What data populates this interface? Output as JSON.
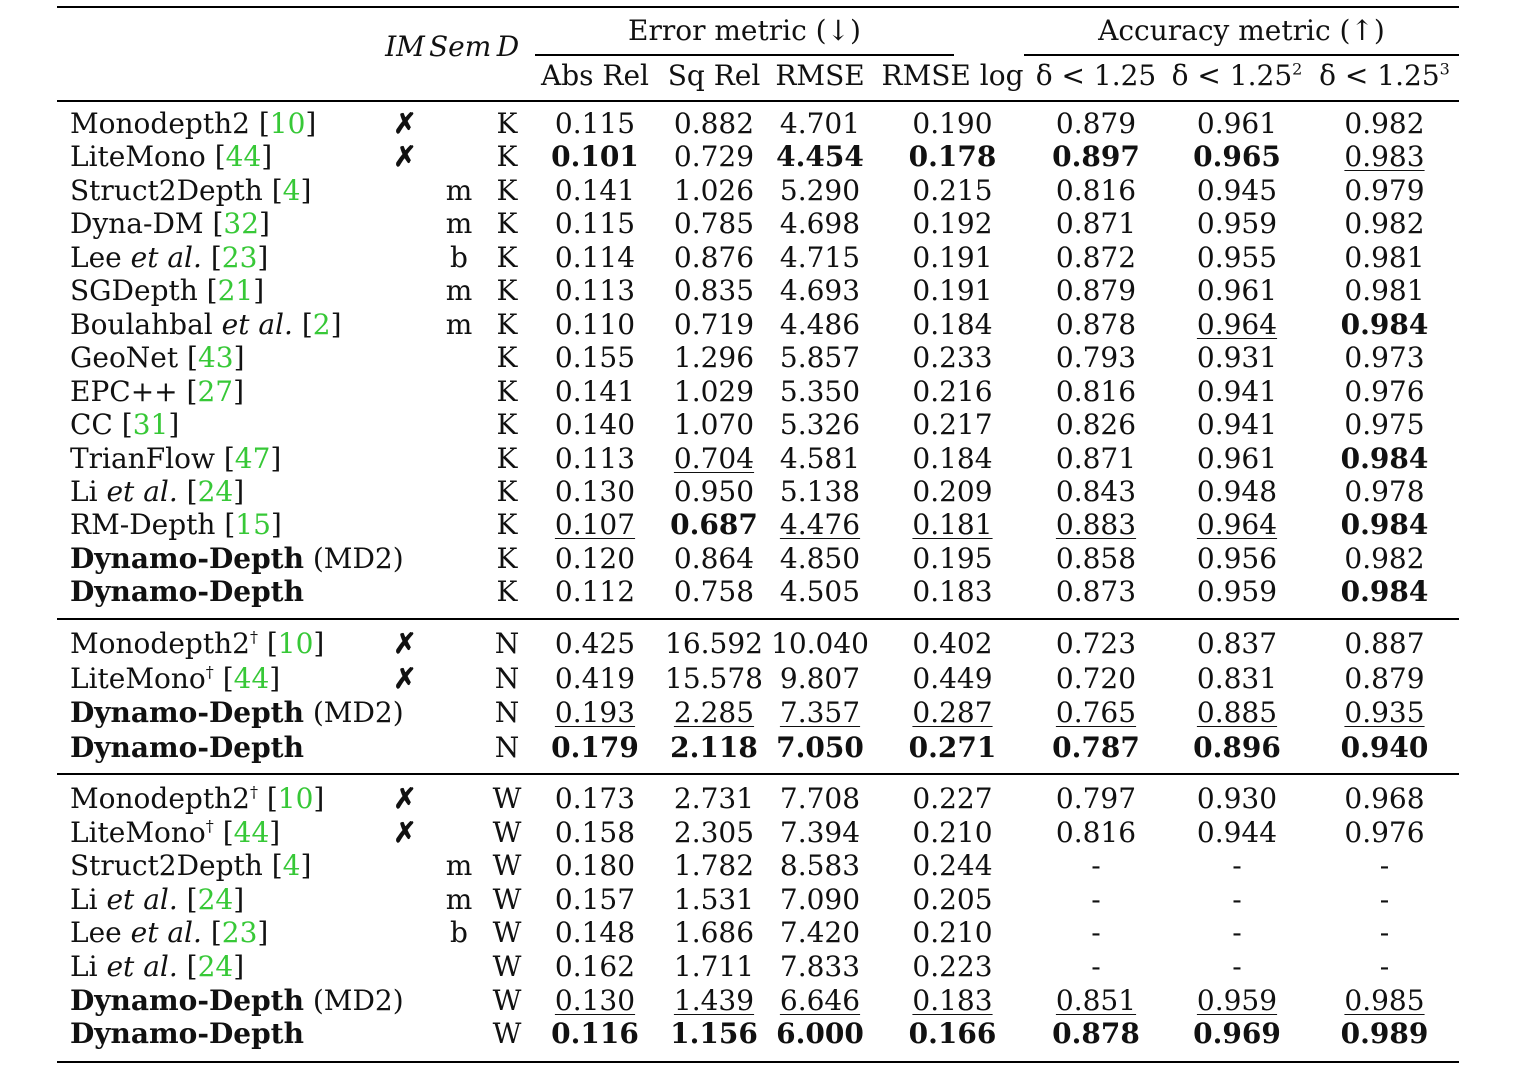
{
  "header": {
    "im": "IM",
    "sem": "Sem",
    "d": "D",
    "error_group": "Error metric (↓)",
    "accuracy_group": "Accuracy metric (↑)",
    "cols": [
      "Abs Rel",
      "Sq Rel",
      "RMSE",
      "RMSE log"
    ],
    "acc_cols": [
      {
        "prefix": "δ < 1.25",
        "sup": ""
      },
      {
        "prefix": "δ < 1.25",
        "sup": "2"
      },
      {
        "prefix": "δ < 1.25",
        "sup": "3"
      }
    ]
  },
  "sections": [
    {
      "rows": [
        {
          "method": "Monodepth2",
          "ref": "10",
          "im": "✗",
          "sem": "",
          "d": "K",
          "vals": [
            "0.115",
            "0.882",
            "4.701",
            "0.190",
            "0.879",
            "0.961",
            "0.982"
          ],
          "bold": [],
          "under": []
        },
        {
          "method": "LiteMono",
          "ref": "44",
          "im": "✗",
          "sem": "",
          "d": "K",
          "vals": [
            "0.101",
            "0.729",
            "4.454",
            "0.178",
            "0.897",
            "0.965",
            "0.983"
          ],
          "bold": [
            0,
            2,
            3,
            4,
            5
          ],
          "under": [
            6
          ]
        },
        {
          "method": "Struct2Depth",
          "ref": "4",
          "im": "",
          "sem": "m",
          "d": "K",
          "vals": [
            "0.141",
            "1.026",
            "5.290",
            "0.215",
            "0.816",
            "0.945",
            "0.979"
          ],
          "bold": [],
          "under": []
        },
        {
          "method": "Dyna-DM",
          "ref": "32",
          "im": "",
          "sem": "m",
          "d": "K",
          "vals": [
            "0.115",
            "0.785",
            "4.698",
            "0.192",
            "0.871",
            "0.959",
            "0.982"
          ],
          "bold": [],
          "under": []
        },
        {
          "method": "Lee",
          "etal": true,
          "ref": "23",
          "im": "",
          "sem": "b",
          "d": "K",
          "vals": [
            "0.114",
            "0.876",
            "4.715",
            "0.191",
            "0.872",
            "0.955",
            "0.981"
          ],
          "bold": [],
          "under": []
        },
        {
          "method": "SGDepth",
          "ref": "21",
          "im": "",
          "sem": "m",
          "d": "K",
          "vals": [
            "0.113",
            "0.835",
            "4.693",
            "0.191",
            "0.879",
            "0.961",
            "0.981"
          ],
          "bold": [],
          "under": []
        },
        {
          "method": "Boulahbal",
          "etal": true,
          "ref": "2",
          "im": "",
          "sem": "m",
          "d": "K",
          "vals": [
            "0.110",
            "0.719",
            "4.486",
            "0.184",
            "0.878",
            "0.964",
            "0.984"
          ],
          "bold": [
            6
          ],
          "under": [
            5
          ]
        },
        {
          "method": "GeoNet",
          "ref": "43",
          "im": "",
          "sem": "",
          "d": "K",
          "vals": [
            "0.155",
            "1.296",
            "5.857",
            "0.233",
            "0.793",
            "0.931",
            "0.973"
          ],
          "bold": [],
          "under": []
        },
        {
          "method": "EPC++",
          "ref": "27",
          "im": "",
          "sem": "",
          "d": "K",
          "vals": [
            "0.141",
            "1.029",
            "5.350",
            "0.216",
            "0.816",
            "0.941",
            "0.976"
          ],
          "bold": [],
          "under": []
        },
        {
          "method": "CC",
          "ref": "31",
          "im": "",
          "sem": "",
          "d": "K",
          "vals": [
            "0.140",
            "1.070",
            "5.326",
            "0.217",
            "0.826",
            "0.941",
            "0.975"
          ],
          "bold": [],
          "under": []
        },
        {
          "method": "TrianFlow",
          "ref": "47",
          "im": "",
          "sem": "",
          "d": "K",
          "vals": [
            "0.113",
            "0.704",
            "4.581",
            "0.184",
            "0.871",
            "0.961",
            "0.984"
          ],
          "bold": [
            6
          ],
          "under": [
            1
          ]
        },
        {
          "method": "Li",
          "etal": true,
          "ref": "24",
          "im": "",
          "sem": "",
          "d": "K",
          "vals": [
            "0.130",
            "0.950",
            "5.138",
            "0.209",
            "0.843",
            "0.948",
            "0.978"
          ],
          "bold": [],
          "under": []
        },
        {
          "method": "RM-Depth",
          "ref": "15",
          "im": "",
          "sem": "",
          "d": "K",
          "vals": [
            "0.107",
            "0.687",
            "4.476",
            "0.181",
            "0.883",
            "0.964",
            "0.984"
          ],
          "bold": [
            1,
            6
          ],
          "under": [
            0,
            2,
            3,
            4,
            5
          ]
        },
        {
          "method": "Dynamo-Depth",
          "suffix": "(MD2)",
          "ours": true,
          "im": "",
          "sem": "",
          "d": "K",
          "vals": [
            "0.120",
            "0.864",
            "4.850",
            "0.195",
            "0.858",
            "0.956",
            "0.982"
          ],
          "bold": [],
          "under": []
        },
        {
          "method": "Dynamo-Depth",
          "ours": true,
          "im": "",
          "sem": "",
          "d": "K",
          "vals": [
            "0.112",
            "0.758",
            "4.505",
            "0.183",
            "0.873",
            "0.959",
            "0.984"
          ],
          "bold": [
            6
          ],
          "under": []
        }
      ]
    },
    {
      "rows": [
        {
          "method": "Monodepth2",
          "dagger": "†",
          "ref": "10",
          "im": "✗",
          "sem": "",
          "d": "N",
          "vals": [
            "0.425",
            "16.592",
            "10.040",
            "0.402",
            "0.723",
            "0.837",
            "0.887"
          ],
          "bold": [],
          "under": []
        },
        {
          "method": "LiteMono",
          "dagger": "†",
          "ref": "44",
          "im": "✗",
          "sem": "",
          "d": "N",
          "vals": [
            "0.419",
            "15.578",
            "9.807",
            "0.449",
            "0.720",
            "0.831",
            "0.879"
          ],
          "bold": [],
          "under": []
        },
        {
          "method": "Dynamo-Depth",
          "suffix": "(MD2)",
          "ours": true,
          "im": "",
          "sem": "",
          "d": "N",
          "vals": [
            "0.193",
            "2.285",
            "7.357",
            "0.287",
            "0.765",
            "0.885",
            "0.935"
          ],
          "bold": [],
          "under": [
            0,
            1,
            2,
            3,
            4,
            5,
            6
          ]
        },
        {
          "method": "Dynamo-Depth",
          "ours": true,
          "im": "",
          "sem": "",
          "d": "N",
          "vals": [
            "0.179",
            "2.118",
            "7.050",
            "0.271",
            "0.787",
            "0.896",
            "0.940"
          ],
          "bold": [
            0,
            1,
            2,
            3,
            4,
            5,
            6
          ],
          "under": []
        }
      ]
    },
    {
      "rows": [
        {
          "method": "Monodepth2",
          "dagger": "†",
          "ref": "10",
          "im": "✗",
          "sem": "",
          "d": "W",
          "vals": [
            "0.173",
            "2.731",
            "7.708",
            "0.227",
            "0.797",
            "0.930",
            "0.968"
          ],
          "bold": [],
          "under": []
        },
        {
          "method": "LiteMono",
          "dagger": "†",
          "ref": "44",
          "im": "✗",
          "sem": "",
          "d": "W",
          "vals": [
            "0.158",
            "2.305",
            "7.394",
            "0.210",
            "0.816",
            "0.944",
            "0.976"
          ],
          "bold": [],
          "under": []
        },
        {
          "method": "Struct2Depth",
          "ref": "4",
          "im": "",
          "sem": "m",
          "d": "W",
          "vals": [
            "0.180",
            "1.782",
            "8.583",
            "0.244",
            "-",
            "-",
            "-"
          ],
          "bold": [],
          "under": []
        },
        {
          "method": "Li",
          "etal": true,
          "ref": "24",
          "im": "",
          "sem": "m",
          "d": "W",
          "vals": [
            "0.157",
            "1.531",
            "7.090",
            "0.205",
            "-",
            "-",
            "-"
          ],
          "bold": [],
          "under": []
        },
        {
          "method": "Lee",
          "etal": true,
          "ref": "23",
          "im": "",
          "sem": "b",
          "d": "W",
          "vals": [
            "0.148",
            "1.686",
            "7.420",
            "0.210",
            "-",
            "-",
            "-"
          ],
          "bold": [],
          "under": []
        },
        {
          "method": "Li",
          "etal": true,
          "ref": "24",
          "im": "",
          "sem": "",
          "d": "W",
          "vals": [
            "0.162",
            "1.711",
            "7.833",
            "0.223",
            "-",
            "-",
            "-"
          ],
          "bold": [],
          "under": []
        },
        {
          "method": "Dynamo-Depth",
          "suffix": "(MD2)",
          "ours": true,
          "im": "",
          "sem": "",
          "d": "W",
          "vals": [
            "0.130",
            "1.439",
            "6.646",
            "0.183",
            "0.851",
            "0.959",
            "0.985"
          ],
          "bold": [],
          "under": [
            0,
            1,
            2,
            3,
            4,
            5,
            6
          ]
        },
        {
          "method": "Dynamo-Depth",
          "ours": true,
          "im": "",
          "sem": "",
          "d": "W",
          "vals": [
            "0.116",
            "1.156",
            "6.000",
            "0.166",
            "0.878",
            "0.969",
            "0.989"
          ],
          "bold": [
            0,
            1,
            2,
            3,
            4,
            5,
            6
          ],
          "under": []
        }
      ]
    }
  ],
  "etal_text": "et al."
}
